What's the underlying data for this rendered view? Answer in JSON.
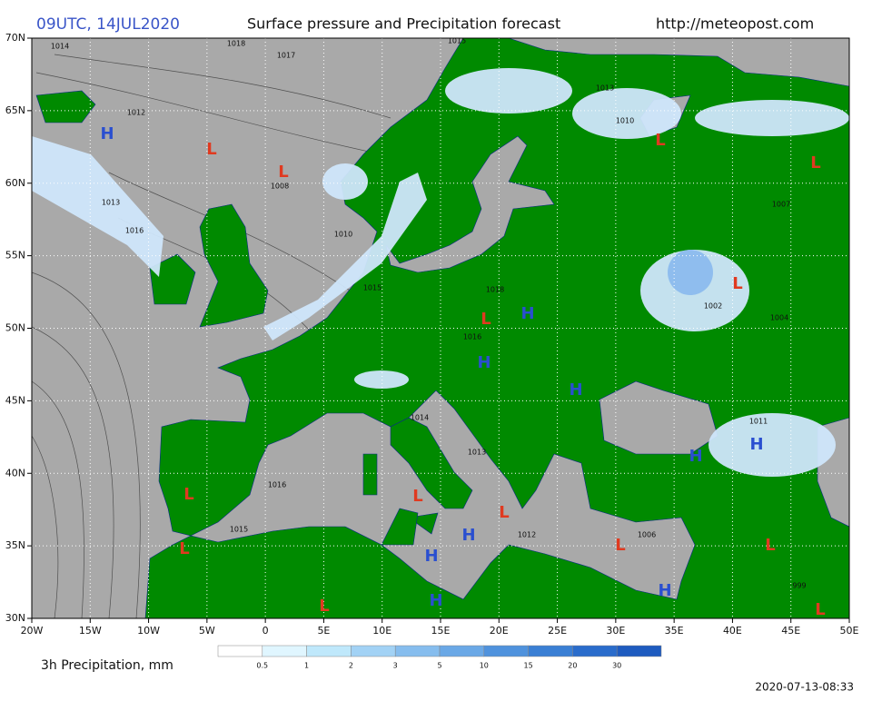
{
  "header": {
    "time": "09UTC, 14JUL2020",
    "title": "Surface pressure and Precipitation forecast",
    "url": "http://meteopost.com"
  },
  "map": {
    "lon_range": [
      -20,
      50
    ],
    "lat_range": [
      30,
      70
    ],
    "lon_ticks": [
      {
        "value": -20,
        "label": "20W"
      },
      {
        "value": -15,
        "label": "15W"
      },
      {
        "value": -10,
        "label": "10W"
      },
      {
        "value": -5,
        "label": "5W"
      },
      {
        "value": 0,
        "label": "0"
      },
      {
        "value": 5,
        "label": "5E"
      },
      {
        "value": 10,
        "label": "10E"
      },
      {
        "value": 15,
        "label": "15E"
      },
      {
        "value": 20,
        "label": "20E"
      },
      {
        "value": 25,
        "label": "25E"
      },
      {
        "value": 30,
        "label": "30E"
      },
      {
        "value": 35,
        "label": "35E"
      },
      {
        "value": 40,
        "label": "40E"
      },
      {
        "value": 45,
        "label": "45E"
      },
      {
        "value": 50,
        "label": "50E"
      }
    ],
    "lat_ticks": [
      {
        "value": 30,
        "label": "30N"
      },
      {
        "value": 35,
        "label": "35N"
      },
      {
        "value": 40,
        "label": "40N"
      },
      {
        "value": 45,
        "label": "45N"
      },
      {
        "value": 50,
        "label": "50N"
      },
      {
        "value": 55,
        "label": "55N"
      },
      {
        "value": 60,
        "label": "60N"
      },
      {
        "value": 65,
        "label": "65N"
      },
      {
        "value": 70,
        "label": "70N"
      }
    ],
    "pressure_centers": [
      "H",
      "L",
      "L",
      "L",
      "H",
      "H",
      "H",
      "L",
      "L",
      "L",
      "H",
      "H",
      "L",
      "L",
      "L",
      "L",
      "H",
      "H",
      "H",
      "L",
      "L",
      "H",
      "L",
      "L"
    ],
    "isobar_labels": [
      "1014",
      "1018",
      "1017",
      "1015",
      "1012",
      "1013",
      "1016",
      "1008",
      "1010",
      "1015",
      "1018",
      "1016",
      "1013",
      "1014",
      "1016",
      "1015",
      "1012",
      "1006",
      "1004",
      "1002",
      "1007",
      "1011",
      "1013",
      "1010",
      "999"
    ]
  },
  "legend": {
    "label": "3h Precipitation, mm",
    "ticks": [
      "0.5",
      "1",
      "2",
      "3",
      "5",
      "10",
      "15",
      "20",
      "30"
    ],
    "colors": [
      "#ffffff",
      "#e0f6ff",
      "#bfe8fb",
      "#a2d2f5",
      "#86bdee",
      "#6aa8e6",
      "#4f92dd",
      "#3a7fd4",
      "#2a6ccb",
      "#1e5bbf"
    ]
  },
  "footer": {
    "timestamp": "2020-07-13-08:33"
  }
}
